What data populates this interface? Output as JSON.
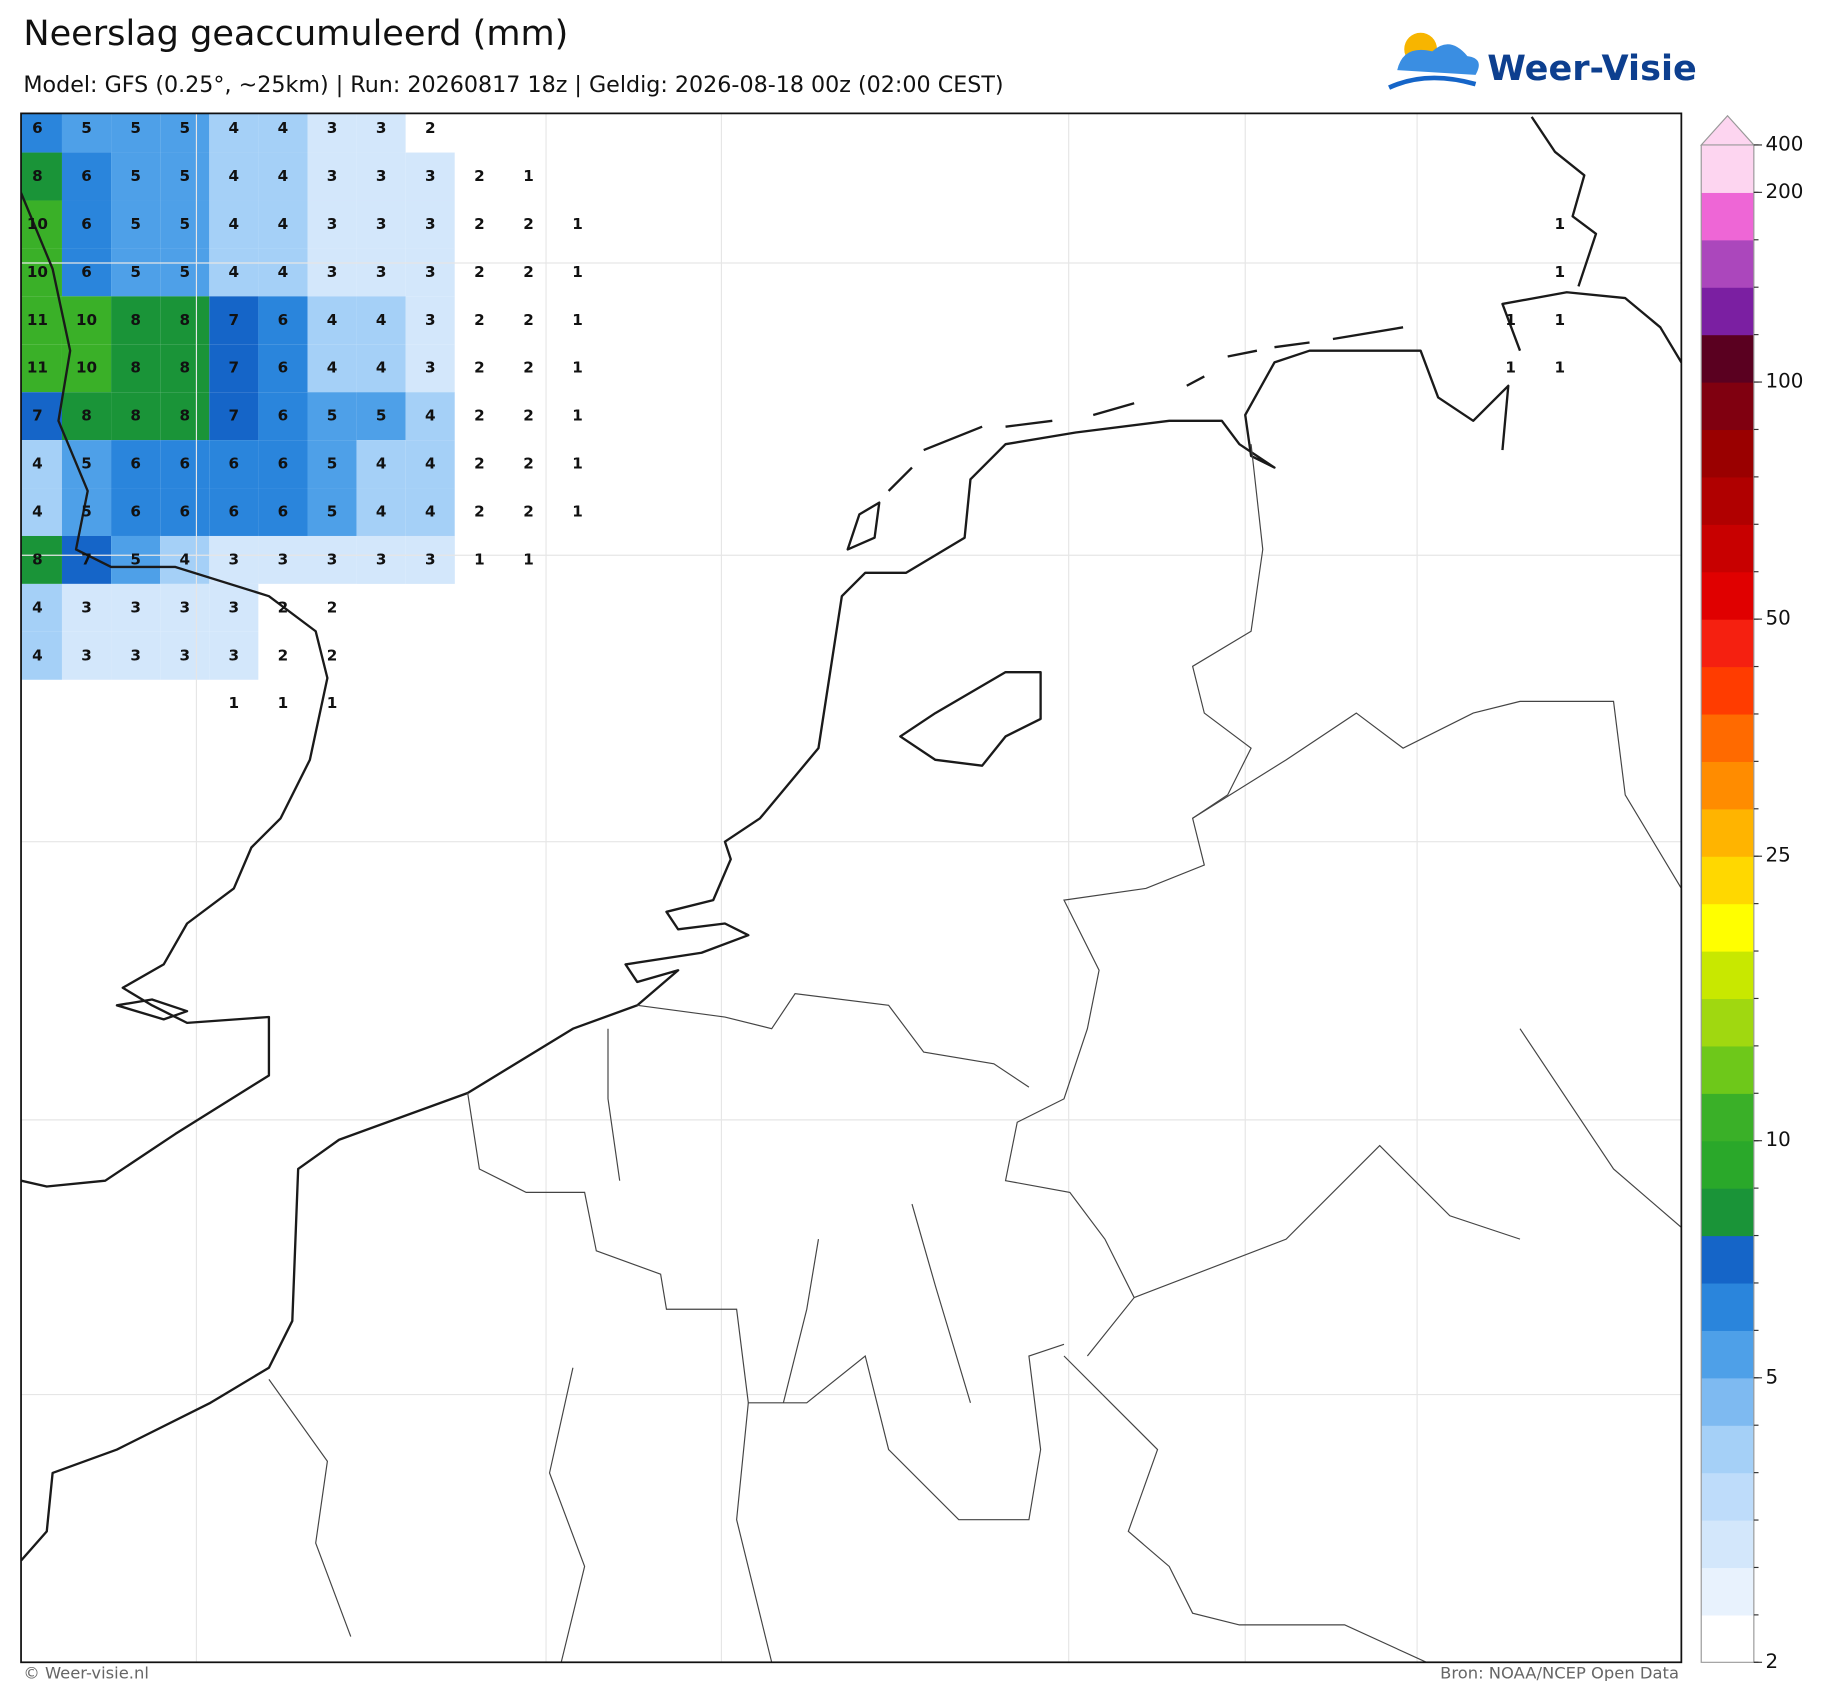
{
  "header": {
    "title": "Neerslag geaccumuleerd (mm)",
    "subtitle": "Model: GFS (0.25°, ~25km)  |  Run: 20260817 18z  |  Geldig: 2026-08-18 00z (02:00 CEST)"
  },
  "logo": {
    "text": "Weer-Visie"
  },
  "map": {
    "grid_values": [
      [
        6,
        5,
        5,
        5,
        4,
        4,
        3,
        3,
        2
      ],
      [
        8,
        6,
        5,
        5,
        4,
        4,
        3,
        3,
        3,
        2,
        1
      ],
      [
        10,
        6,
        5,
        5,
        4,
        4,
        3,
        3,
        3,
        2,
        2,
        1,
        null,
        null,
        null,
        null,
        null,
        null,
        null,
        null,
        null,
        null,
        null,
        null,
        null,
        null,
        null,
        null,
        null,
        null,
        null,
        1
      ],
      [
        10,
        6,
        5,
        5,
        4,
        4,
        3,
        3,
        3,
        2,
        2,
        1,
        null,
        null,
        null,
        null,
        null,
        null,
        null,
        null,
        null,
        null,
        null,
        null,
        null,
        null,
        null,
        null,
        null,
        null,
        null,
        1
      ],
      [
        11,
        10,
        8,
        8,
        7,
        6,
        4,
        4,
        3,
        2,
        2,
        1,
        null,
        null,
        null,
        null,
        null,
        null,
        null,
        null,
        null,
        null,
        null,
        null,
        null,
        null,
        null,
        null,
        null,
        null,
        1,
        1
      ],
      [
        11,
        10,
        8,
        8,
        7,
        6,
        4,
        4,
        3,
        2,
        2,
        1,
        null,
        null,
        null,
        null,
        null,
        null,
        null,
        null,
        null,
        null,
        null,
        null,
        null,
        null,
        null,
        null,
        null,
        null,
        1,
        1
      ],
      [
        7,
        8,
        8,
        8,
        7,
        6,
        5,
        5,
        4,
        2,
        2,
        1
      ],
      [
        4,
        5,
        6,
        6,
        6,
        6,
        5,
        4,
        4,
        2,
        2,
        1
      ],
      [
        4,
        5,
        6,
        6,
        6,
        6,
        5,
        4,
        4,
        2,
        2,
        1
      ],
      [
        8,
        7,
        5,
        4,
        3,
        3,
        3,
        3,
        3,
        1,
        1
      ],
      [
        4,
        3,
        3,
        3,
        3,
        2,
        2
      ],
      [
        4,
        3,
        3,
        3,
        3,
        2,
        2
      ],
      [
        null,
        null,
        null,
        null,
        1,
        1,
        1
      ]
    ]
  },
  "colorbar": {
    "levels": [
      2,
      2.5,
      3,
      3.5,
      4,
      4.5,
      5,
      6,
      7,
      8,
      9,
      10,
      12.5,
      15,
      17.5,
      20,
      22.5,
      25,
      30,
      35,
      40,
      45,
      50,
      60,
      70,
      80,
      90,
      100,
      125,
      150,
      175,
      200,
      400
    ],
    "colors": [
      "#ffffff",
      "#e8f2fd",
      "#d3e7fb",
      "#bedcfa",
      "#a5d0f7",
      "#7ebaf1",
      "#4ea0e8",
      "#2a85dc",
      "#1565c8",
      "#1a9438",
      "#2aa82a",
      "#3ab028",
      "#6ec81a",
      "#a0d810",
      "#c8e800",
      "#ffff00",
      "#ffd800",
      "#ffb400",
      "#ff8c00",
      "#ff6a00",
      "#ff3c00",
      "#f52010",
      "#e00000",
      "#c80000",
      "#b00000",
      "#9a0000",
      "#800010",
      "#5a0020",
      "#7b1fa2",
      "#ab47bc",
      "#ee66d6",
      "#fdd5f0"
    ],
    "extend_color": "#fdd5f0",
    "ticks": [
      2,
      5,
      10,
      25,
      50,
      100,
      200,
      400
    ]
  },
  "footer": {
    "credit": "© Weer-visie.nl",
    "source": "Bron: NOAA/NCEP Open Data"
  }
}
